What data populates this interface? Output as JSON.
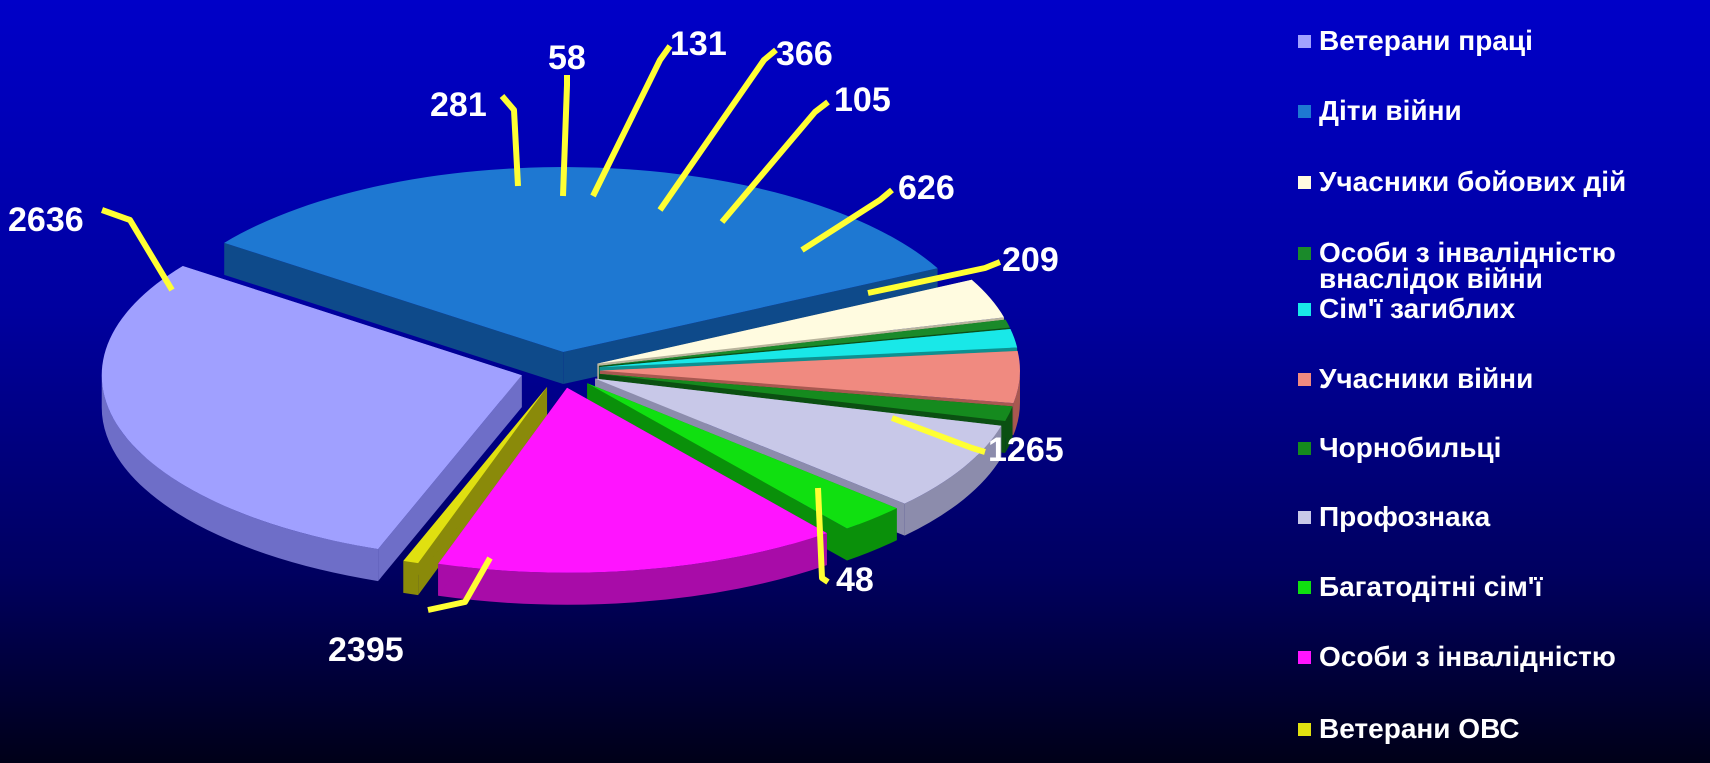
{
  "chart_data": {
    "type": "pie",
    "title": "",
    "legend_position": "right",
    "slices": [
      {
        "label": "Ветерани праці",
        "value": 2395,
        "color": "#a0a0ff",
        "side": "#6e6ec8"
      },
      {
        "label": "Діти війни",
        "value": 2636,
        "color": "#1e78d2",
        "side": "#0e4a8a"
      },
      {
        "label": "Учасники бойових дій",
        "value": 281,
        "color": "#fffbe0",
        "side": "#b8b49c"
      },
      {
        "label": "Особи з інвалідністю\nвнаслідок війни",
        "value": 58,
        "color": "#1a8a2a",
        "side": "#0c5018"
      },
      {
        "label": "Сім'ї загиблих",
        "value": 131,
        "color": "#19e8e8",
        "side": "#0e9090"
      },
      {
        "label": "Учасники війни",
        "value": 366,
        "color": "#f08a80",
        "side": "#a85850"
      },
      {
        "label": "Чорнобильці",
        "value": 105,
        "color": "#158a1e",
        "side": "#0b5012"
      },
      {
        "label": "Профознака",
        "value": 626,
        "color": "#c8c8e8",
        "side": "#8c8cac"
      },
      {
        "label": "Багатодітні сім'ї",
        "value": 209,
        "color": "#10e010",
        "side": "#0a900a"
      },
      {
        "label": "Особи з інвалідністю",
        "value": 1265,
        "color": "#ff14ff",
        "side": "#a80ca8"
      },
      {
        "label": "Ветерани ОВС",
        "value": 48,
        "color": "#e0e010",
        "side": "#8a8a0a"
      }
    ]
  }
}
